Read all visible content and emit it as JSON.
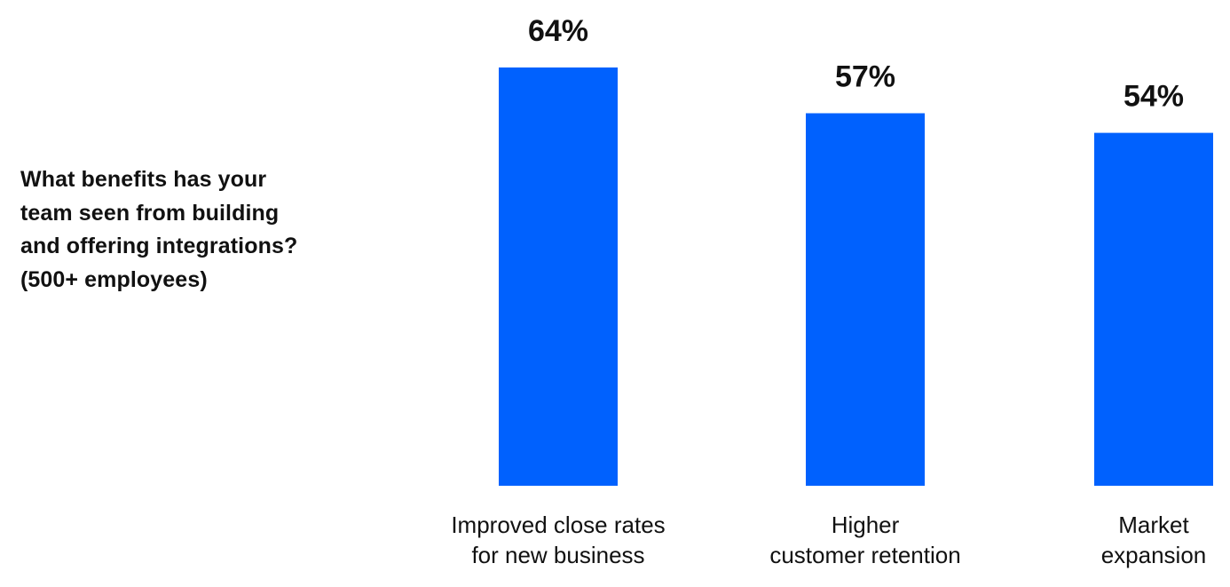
{
  "question": {
    "lines": [
      "What benefits has your",
      "team seen from building",
      "and offering integrations?",
      "(500+ employees)"
    ]
  },
  "colors": {
    "bar": "#0061FE",
    "text": "#111111"
  },
  "chart_data": {
    "type": "bar",
    "title": "What benefits has your team seen from building and offering integrations? (500+ employees)",
    "categories": [
      [
        "Improved close rates",
        "for new business"
      ],
      [
        "Higher",
        "customer retention"
      ],
      [
        "Market",
        "expansion"
      ]
    ],
    "values": [
      64,
      57,
      54
    ],
    "value_labels": [
      "64%",
      "57%",
      "54%"
    ],
    "unit": "%",
    "ylim": [
      0,
      64
    ],
    "grid": false,
    "xlabel": "",
    "ylabel": ""
  }
}
